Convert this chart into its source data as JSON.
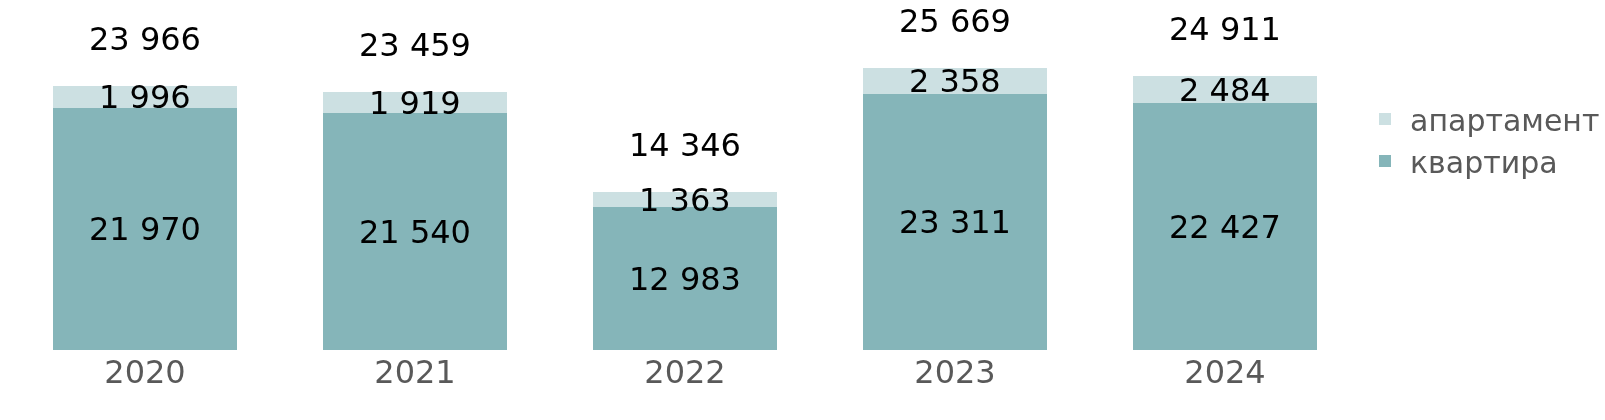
{
  "chart_data": {
    "type": "bar",
    "stacked": true,
    "categories": [
      "2020",
      "2021",
      "2022",
      "2023",
      "2024"
    ],
    "series": [
      {
        "name": "квартира",
        "color": "#85b5b9",
        "values": [
          21970,
          21540,
          12983,
          23311,
          22427
        ],
        "value_labels": [
          "21 970",
          "21 540",
          "12 983",
          "23 311",
          "22 427"
        ]
      },
      {
        "name": "апартамент",
        "color": "#cce0e2",
        "values": [
          1996,
          1919,
          1363,
          2358,
          2484
        ],
        "value_labels": [
          "1 996",
          "1 919",
          "1 363",
          "2 358",
          "2 484"
        ]
      }
    ],
    "totals": [
      "23 966",
      "23 459",
      "14 346",
      "25 669",
      "24 911"
    ],
    "tick_labels": "x",
    "grid": false,
    "legend": "right"
  }
}
